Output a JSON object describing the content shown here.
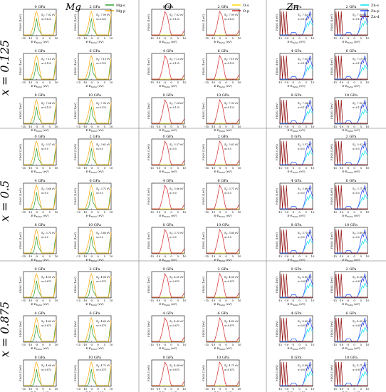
{
  "colors": {
    "Mg-s": "#2ca02c",
    "Mg-p": "#ffa500",
    "O-s": "#ffd700",
    "O-p": "#d62728",
    "Zn-s": "#00e5ee",
    "Zn-p": "#1f3fff",
    "Zn-d": "#8b0000",
    "divider": "#999999",
    "frame": "#000000"
  },
  "columns": [
    {
      "key": "Mg",
      "label": "Mg"
    },
    {
      "key": "O",
      "label": "O"
    },
    {
      "key": "Zn",
      "label": "Zn"
    }
  ],
  "legends": {
    "Mg": [
      "Mg-s",
      "Mg-p"
    ],
    "O": [
      "O-s",
      "O-p"
    ],
    "Zn": [
      "Zn-s",
      "Zn-p",
      "Zn-d"
    ]
  },
  "blocks": [
    {
      "label": "x = 0.125",
      "x_annot": "x=0.125",
      "pressures": [
        "0 GPa",
        "2 GPa",
        "4 GPa",
        "6 GPa",
        "8 GPa",
        "10 GPa"
      ],
      "eg": [
        "7.02 eV",
        "7.09 eV",
        "7.15 eV",
        "7.19 eV",
        "7.24 eV",
        "7.30 eV"
      ]
    },
    {
      "label": "x = 0.5",
      "x_annot": "x=0.5",
      "pressures": [
        "0 GPa",
        "2 GPa",
        "4 GPa",
        "6 GPa",
        "8 GPa",
        "10 GPa"
      ],
      "eg": [
        "3.57 eV",
        "3.62 eV",
        "3.66 eV",
        "3.71 eV",
        "3.75 eV",
        "3.80 eV"
      ]
    },
    {
      "label": "x = 0.875",
      "x_annot": "x=0.875",
      "pressures": [
        "0 GPa",
        "2 GPa",
        "4 GPa",
        "6 GPa",
        "8 GPa",
        "10 GPa"
      ],
      "eg": [
        "4.51 eV",
        "4.58 eV",
        "4.60 eV",
        "4.65 eV",
        "4.68 eV",
        "4.71 eV"
      ]
    }
  ],
  "eg_prefix": "E",
  "eg_sub": "g",
  "axes": {
    "ylabel": "PDOS (1/eV)",
    "xlabel_main": "E-E",
    "xlabel_sub": "Fermi",
    "xlabel_unit": "(eV)",
    "xticks": [
      "-15",
      "-10",
      "-5",
      "0",
      "5",
      "10"
    ]
  },
  "chart_data": {
    "type": "line",
    "xlim": [
      -15,
      10
    ],
    "x_ticks": [
      -15,
      -10,
      -5,
      0,
      5,
      10
    ],
    "xlabel": "E-E_Fermi (eV)",
    "ylabel": "PDOS (1/eV)",
    "rows": [
      "x = 0.125",
      "x = 0.5",
      "x = 0.875"
    ],
    "columns": [
      "Mg",
      "O",
      "Zn"
    ],
    "pressures_gpa": [
      0,
      2,
      4,
      6,
      8,
      10
    ],
    "band_gap_ev": {
      "x = 0.125": [
        7.02,
        7.09,
        7.15,
        7.19,
        7.24,
        7.3
      ],
      "x = 0.5": [
        3.57,
        3.62,
        3.66,
        3.71,
        3.75,
        3.8
      ],
      "x = 0.875": [
        4.51,
        4.58,
        4.6,
        4.65,
        4.68,
        4.71
      ]
    },
    "series": {
      "Mg": [
        {
          "name": "Mg-s",
          "x": [
            -15,
            -14,
            -13,
            -12,
            -11,
            -10,
            -9,
            -8,
            -7,
            -6,
            -5,
            -4,
            -3,
            -2,
            -1,
            0,
            1,
            2,
            3,
            4,
            5,
            6,
            7,
            8,
            9,
            10
          ],
          "y": [
            0.0,
            0.0,
            0.0,
            0.0,
            0.0,
            0.0,
            0.0,
            0.0,
            0.1,
            0.4,
            0.7,
            0.3,
            0.2,
            0.1,
            0.0,
            0.0,
            0.0,
            0.0,
            0.0,
            0.0,
            0.0,
            0.0,
            0.0,
            0.0,
            0.5,
            0.7
          ]
        },
        {
          "name": "Mg-p",
          "x": [
            -15,
            -14,
            -13,
            -12,
            -11,
            -10,
            -9,
            -8,
            -7,
            -6,
            -5,
            -4,
            -3,
            -2,
            -1,
            0,
            1,
            2,
            3,
            4,
            5,
            6,
            7,
            8,
            9,
            10
          ],
          "y": [
            0.0,
            0.0,
            0.0,
            0.0,
            0.0,
            0.0,
            0.1,
            0.3,
            0.5,
            0.9,
            1.0,
            0.8,
            0.5,
            0.2,
            0.0,
            0.0,
            0.0,
            0.0,
            0.0,
            0.0,
            0.0,
            0.0,
            0.0,
            0.0,
            0.3,
            0.9
          ]
        }
      ],
      "O": [
        {
          "name": "O-s",
          "x": [
            -15,
            -14,
            -13,
            -12,
            -11,
            -10,
            -9,
            -8,
            -7,
            -6,
            -5,
            -4,
            -3,
            -2,
            -1,
            0,
            1,
            2,
            3,
            4,
            5,
            6,
            7,
            8,
            9,
            10
          ],
          "y": [
            0.0,
            0.0,
            0.0,
            0.0,
            0.0,
            0.0,
            0.0,
            0.0,
            0.0,
            0.0,
            0.0,
            0.0,
            0.0,
            0.0,
            0.0,
            0.0,
            0.0,
            0.0,
            0.0,
            0.0,
            0.0,
            0.0,
            0.0,
            0.0,
            0.0,
            0.0
          ]
        },
        {
          "name": "O-p",
          "x": [
            -15,
            -14,
            -13,
            -12,
            -11,
            -10,
            -9,
            -8,
            -7,
            -6,
            -5,
            -4,
            -3,
            -2,
            -1,
            0,
            1,
            2,
            3,
            4,
            5,
            6,
            7,
            8,
            9,
            10
          ],
          "y": [
            0.0,
            0.0,
            0.0,
            0.0,
            0.0,
            0.0,
            0.0,
            0.2,
            0.4,
            0.7,
            1.0,
            0.9,
            0.8,
            0.5,
            0.2,
            0.0,
            0.0,
            0.0,
            0.0,
            0.0,
            0.0,
            0.0,
            0.0,
            0.0,
            0.1,
            0.2
          ]
        }
      ],
      "Zn": [
        {
          "name": "Zn-s",
          "x": [
            -15,
            -14,
            -13,
            -12,
            -11,
            -10,
            -9,
            -8,
            -7,
            -6,
            -5,
            -4,
            -3,
            -2,
            -1,
            0,
            1,
            2,
            3,
            4,
            5,
            6,
            7,
            8,
            9,
            10
          ],
          "y": [
            0.0,
            0.0,
            0.0,
            0.0,
            0.0,
            0.0,
            0.0,
            0.0,
            0.0,
            0.1,
            0.1,
            0.1,
            0.1,
            0.0,
            0.0,
            0.0,
            0.0,
            0.0,
            0.1,
            0.2,
            0.3,
            0.5,
            0.4,
            0.6,
            0.5,
            0.4
          ]
        },
        {
          "name": "Zn-p",
          "x": [
            -15,
            -14,
            -13,
            -12,
            -11,
            -10,
            -9,
            -8,
            -7,
            -6,
            -5,
            -4,
            -3,
            -2,
            -1,
            0,
            1,
            2,
            3,
            4,
            5,
            6,
            7,
            8,
            9,
            10
          ],
          "y": [
            0.0,
            0.0,
            0.0,
            0.0,
            0.0,
            0.0,
            0.0,
            0.0,
            0.0,
            0.1,
            0.1,
            0.1,
            0.1,
            0.0,
            0.0,
            0.0,
            0.0,
            0.0,
            0.1,
            0.3,
            0.6,
            0.8,
            0.7,
            1.0,
            0.7,
            0.5
          ]
        },
        {
          "name": "Zn-d",
          "x": [
            -15,
            -14,
            -13,
            -12,
            -11,
            -10,
            -9,
            -8,
            -7,
            -6,
            -5,
            -4,
            -3,
            -2,
            -1,
            0,
            1,
            2,
            3,
            4,
            5,
            6,
            7,
            8,
            9,
            10
          ],
          "y": [
            0.0,
            1.0,
            0.0,
            1.0,
            0.0,
            1.0,
            0.0,
            0.0,
            0.0,
            0.0,
            0.0,
            0.0,
            0.0,
            0.0,
            0.0,
            0.0,
            0.0,
            0.0,
            0.0,
            0.0,
            0.0,
            0.0,
            0.0,
            0.0,
            0.0,
            0.0
          ]
        }
      ]
    }
  }
}
